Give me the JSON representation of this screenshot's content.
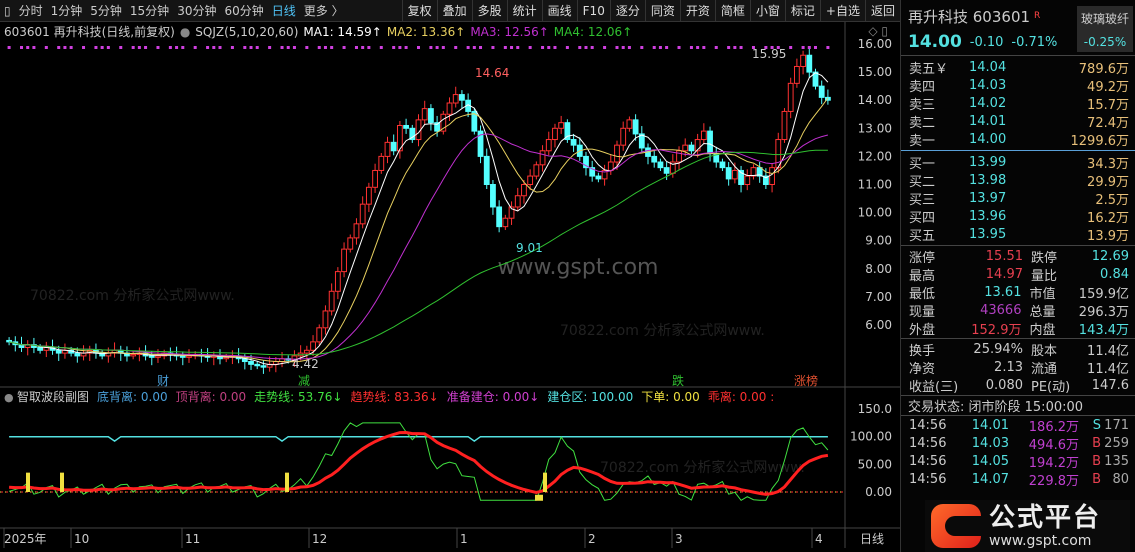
{
  "toolbar": {
    "periods": [
      "分时",
      "1分钟",
      "5分钟",
      "15分钟",
      "30分钟",
      "60分钟",
      "日线",
      "更多 〉"
    ],
    "active_period": "日线",
    "buttons": [
      "复权",
      "叠加",
      "多股",
      "统计",
      "画线",
      "F10",
      "逐分",
      "同资",
      "开资",
      "简框",
      "小窗",
      "标记",
      "+自选",
      "返回"
    ]
  },
  "info": {
    "code_name": "603601 再升科技(日线,前复权)",
    "indicator": "SQJZ(5,10,20,60)",
    "ma1": "MA1: 14.59↑",
    "ma2": "MA2: 13.36↑",
    "ma3": "MA3: 12.56↑",
    "ma4": "MA4: 12.06↑"
  },
  "colors": {
    "up": "#ff3232",
    "down": "#54ffff",
    "ma1": "#ffffff",
    "ma2": "#e8d060",
    "ma3": "#c030d0",
    "ma4": "#30c030",
    "grid": "#7a1010"
  },
  "chart_data": [
    {
      "type": "candlestick",
      "ylim": [
        4,
        16.5
      ],
      "y_ticks": [
        "16.00",
        "15.00",
        "14.00",
        "13.00",
        "12.00",
        "11.00",
        "10.00",
        "9.00",
        "8.00",
        "7.00",
        "6.00"
      ],
      "x_labels": [
        "2025年",
        "10",
        "11",
        "12",
        "1",
        "2",
        "3",
        "4"
      ],
      "period_label": "日线",
      "close": [
        5.4,
        5.3,
        5.2,
        5.3,
        5.2,
        5.1,
        5.2,
        5.1,
        5.0,
        5.1,
        5.0,
        4.9,
        5.0,
        5.1,
        5.0,
        4.9,
        5.0,
        5.1,
        5.0,
        4.9,
        4.95,
        5.0,
        4.9,
        4.85,
        4.9,
        5.0,
        4.95,
        4.9,
        4.85,
        4.9,
        4.95,
        4.9,
        4.85,
        4.9,
        4.8,
        4.85,
        4.9,
        4.8,
        4.7,
        4.6,
        4.55,
        4.5,
        4.6,
        4.7,
        4.8,
        4.75,
        4.9,
        5.0,
        5.1,
        5.4,
        5.9,
        6.5,
        7.2,
        7.9,
        8.7,
        9.1,
        9.6,
        10.3,
        10.9,
        11.5,
        12.0,
        12.5,
        12.2,
        13.1,
        13.0,
        12.6,
        13.3,
        13.7,
        13.2,
        12.9,
        13.5,
        13.9,
        14.2,
        14.0,
        13.6,
        12.9,
        12.0,
        11.0,
        10.2,
        9.5,
        9.8,
        10.2,
        10.6,
        11.0,
        11.3,
        11.7,
        12.2,
        12.6,
        13.0,
        13.2,
        12.6,
        12.4,
        12.0,
        11.6,
        11.3,
        11.2,
        11.5,
        11.8,
        12.4,
        13.0,
        13.3,
        12.8,
        12.3,
        12.0,
        11.8,
        11.6,
        11.4,
        11.8,
        12.2,
        12.4,
        12.2,
        12.6,
        12.9,
        12.1,
        11.8,
        11.6,
        11.2,
        11.5,
        11.0,
        11.3,
        11.6,
        11.3,
        11.0,
        11.6,
        12.6,
        13.6,
        14.6,
        15.2,
        15.6,
        15.0,
        14.5,
        14.1,
        14.0
      ],
      "annotations": {
        "high1": "14.64",
        "low1": "9.01",
        "high2": "15.95",
        "low0": "4.42"
      },
      "events": [
        "财",
        "减",
        "跌",
        "涨榜"
      ]
    },
    {
      "type": "line",
      "title": "智取波段副图",
      "ylim": [
        -20,
        160
      ],
      "y_ticks": [
        "150.0",
        "100.00",
        "50.00",
        "0.00"
      ],
      "legend": [
        {
          "label": "底背离: 0.00",
          "color": "#4a9fd8"
        },
        {
          "label": "顶背离: 0.00",
          "color": "#c04080"
        },
        {
          "label": "走势线: 53.76↓",
          "color": "#40e040"
        },
        {
          "label": "趋势线: 83.36↓",
          "color": "#ff3030"
        },
        {
          "label": "准备建仓: 0.00↓",
          "color": "#d040d0"
        },
        {
          "label": "建仓区: 100.00",
          "color": "#54e1e1"
        },
        {
          "label": "下单: 0.00",
          "color": "#f0e040"
        },
        {
          "label": "乖离: 0.00 :",
          "color": "#ff3030"
        }
      ]
    }
  ],
  "watermark": {
    "center": "www.gspt.com",
    "tile": "70822.com 分析家公式网www."
  },
  "quote": {
    "name": "再升科技 603601",
    "flag": "R",
    "sector": "玻璃玻纤",
    "sector_change": "-0.25%",
    "price": "14.00",
    "change": "-0.10",
    "pct": "-0.71%",
    "asks": [
      {
        "l": "卖五￥",
        "p": "14.04",
        "v": "789.6万"
      },
      {
        "l": "卖四",
        "p": "14.03",
        "v": "49.2万"
      },
      {
        "l": "卖三",
        "p": "14.02",
        "v": "15.7万"
      },
      {
        "l": "卖二",
        "p": "14.01",
        "v": "72.4万"
      },
      {
        "l": "卖一",
        "p": "14.00",
        "v": "1299.6万"
      }
    ],
    "bids": [
      {
        "l": "买一",
        "p": "13.99",
        "v": "34.3万"
      },
      {
        "l": "买二",
        "p": "13.98",
        "v": "29.9万"
      },
      {
        "l": "买三",
        "p": "13.97",
        "v": "2.5万"
      },
      {
        "l": "买四",
        "p": "13.96",
        "v": "16.2万"
      },
      {
        "l": "买五",
        "p": "13.95",
        "v": "13.9万"
      }
    ],
    "stats1": [
      [
        "涨停",
        "15.51",
        "跌停",
        "12.69"
      ],
      [
        "最高",
        "14.97",
        "量比",
        "0.84"
      ],
      [
        "最低",
        "13.61",
        "市值",
        "159.9亿"
      ],
      [
        "现量",
        "43666",
        "总量",
        "296.3万"
      ],
      [
        "外盘",
        "152.9万",
        "内盘",
        "143.4万"
      ]
    ],
    "stats2": [
      [
        "换手",
        "25.94%",
        "股本",
        "11.4亿"
      ],
      [
        "净资",
        "2.13",
        "流通",
        "11.4亿"
      ],
      [
        "收益(三)",
        "0.080",
        "PE(动)",
        "147.6"
      ]
    ],
    "status": "交易状态: 闭市阶段 15:00:00",
    "ticks": [
      [
        "14:56",
        "14.01",
        "186.2万",
        "S",
        "171"
      ],
      [
        "14:56",
        "14.03",
        "494.6万",
        "B",
        "259"
      ],
      [
        "14:56",
        "14.05",
        "194.2万",
        "B",
        "135"
      ],
      [
        "14:56",
        "14.07",
        "229.8万",
        "B",
        "80"
      ]
    ]
  },
  "logo": {
    "text": "公式平台",
    "url": "www.gspt.com"
  }
}
